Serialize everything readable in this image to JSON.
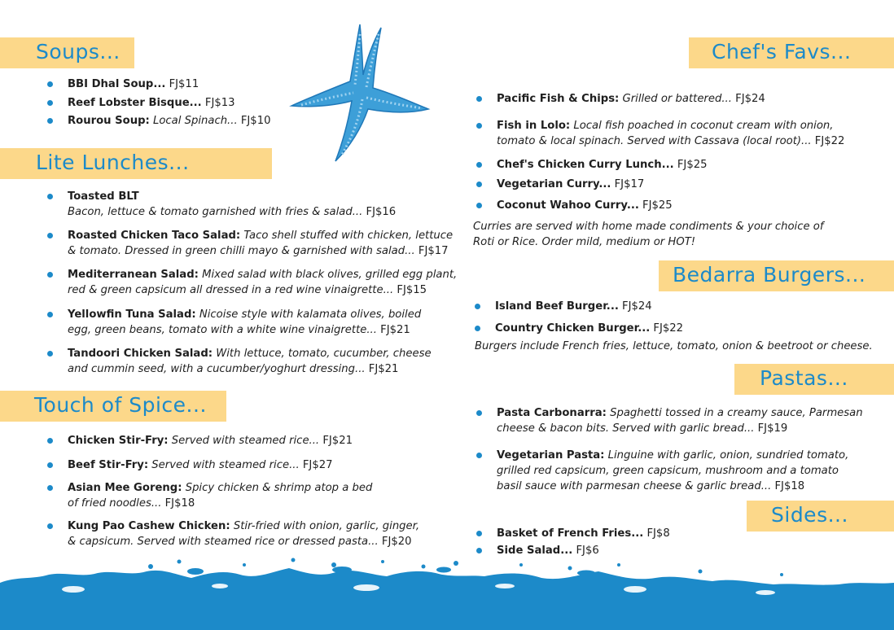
{
  "left": {
    "soups": {
      "title": "Soups...",
      "items": [
        {
          "name": "BBI Dhal Soup...",
          "desc": "",
          "price": " FJ$11"
        },
        {
          "name": "Reef Lobster Bisque...",
          "desc": "",
          "price": " FJ$13"
        },
        {
          "name": "Rourou Soup:",
          "desc": " Local Spinach...",
          "price": " FJ$10"
        }
      ]
    },
    "lite": {
      "title": "Lite Lunches...",
      "items": [
        {
          "name": "Toasted BLT",
          "desc": "",
          "line2": "Bacon, lettuce & tomato garnished with fries & salad...",
          "price": " FJ$16"
        },
        {
          "name": "Roasted Chicken Taco Salad:",
          "desc": " Taco shell stuffed with chicken, lettuce",
          "line2": "& tomato. Dressed in green chilli mayo & garnished with salad...",
          "price": " FJ$17"
        },
        {
          "name": "Mediterranean  Salad:",
          "desc": " Mixed salad with black olives, grilled egg plant,",
          "line2": "red & green capsicum all dressed in a red wine vinaigrette...",
          "price": " FJ$15"
        },
        {
          "name": "Yellowfin Tuna Salad:",
          "desc": " Nicoise style with kalamata olives, boiled",
          "line2": "egg, green beans, tomato with a white wine vinaigrette...",
          "price": " FJ$21"
        },
        {
          "name": "Tandoori Chicken Salad:",
          "desc": " With lettuce, tomato, cucumber, cheese",
          "line2": "and cummin seed, with a cucumber/yoghurt dressing...",
          "price": " FJ$21"
        }
      ]
    },
    "spice": {
      "title": "Touch of Spice...",
      "items": [
        {
          "name": "Chicken Stir-Fry:",
          "desc": " Served with steamed rice...",
          "price": " FJ$21"
        },
        {
          "name": "Beef Stir-Fry:",
          "desc": " Served with steamed rice...",
          "price": " FJ$27"
        },
        {
          "name": "Asian Mee Goreng:",
          "desc": " Spicy chicken & shrimp atop a bed",
          "line2": "of fried noodles...",
          "price": " FJ$18"
        },
        {
          "name": "Kung Pao Cashew Chicken:",
          "desc": " Stir-fried with onion, garlic, ginger,",
          "line2": "& capsicum. Served with steamed rice or dressed pasta...",
          "price": "  FJ$20"
        }
      ]
    }
  },
  "right": {
    "chef": {
      "title": "Chef's Favs...",
      "items": [
        {
          "name": "Pacific Fish & Chips:",
          "desc": " Grilled or battered...",
          "price": " FJ$24"
        },
        {
          "name": "Fish in Lolo:",
          "desc": " Local fish poached in coconut cream with onion,",
          "line2": "tomato & local spinach. Served with Cassava (local root)...",
          "price": "  FJ$22"
        },
        {
          "name": "Chef's Chicken Curry Lunch...",
          "desc": "",
          "price": " FJ$25"
        },
        {
          "name": "Vegetarian Curry...",
          "desc": "",
          "price": " FJ$17"
        },
        {
          "name": "Coconut Wahoo Curry...",
          "desc": "",
          "price": " FJ$25"
        }
      ],
      "note1": "Curries are served with home made condiments & your choice of",
      "note2": "Roti or Rice.  Order mild, medium or HOT!"
    },
    "burgers": {
      "title": "Bedarra Burgers...",
      "items": [
        {
          "name": "Island Beef Burger...",
          "desc": "",
          "price": " FJ$24"
        },
        {
          "name": "Country Chicken Burger...",
          "desc": "",
          "price": " FJ$22"
        }
      ],
      "note": "Burgers include French fries, lettuce, tomato, onion & beetroot or cheese."
    },
    "pastas": {
      "title": "Pastas...",
      "items": [
        {
          "name": "Pasta Carbonarra:",
          "desc": " Spaghetti tossed in a creamy sauce, Parmesan",
          "line2": "cheese & bacon bits. Served with garlic bread...",
          "price": " FJ$19"
        },
        {
          "name": "Vegetarian Pasta:",
          "desc": " Linguine with garlic, onion, sundried tomato,",
          "line2": "grilled red capsicum, green capsicum, mushroom and a tomato",
          "line3": "basil sauce with parmesan cheese & garlic bread...",
          "price": " FJ$18"
        }
      ]
    },
    "sides": {
      "title": "Sides...",
      "items": [
        {
          "name": "Basket of French Fries...",
          "desc": "",
          "price": " FJ$8"
        },
        {
          "name": "Side Salad...",
          "desc": "",
          "price": " FJ$6"
        }
      ]
    }
  },
  "colors": {
    "banner": "#fcd88a",
    "accent": "#1c8ac9",
    "text": "#1f1f1f"
  },
  "icons": {
    "starfish": "starfish-icon",
    "waves": "ocean-waves-decoration"
  }
}
